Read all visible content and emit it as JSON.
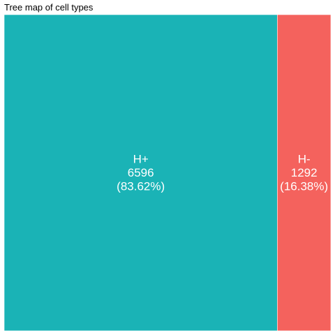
{
  "chart_data": {
    "type": "treemap",
    "title": "Tree map of cell types",
    "tiles": [
      {
        "name": "H+",
        "value": 6596,
        "percent": "83.62%",
        "color": "#1AB3B6"
      },
      {
        "name": "H-",
        "value": 1292,
        "percent": "16.38%",
        "color": "#F4625D"
      }
    ]
  }
}
